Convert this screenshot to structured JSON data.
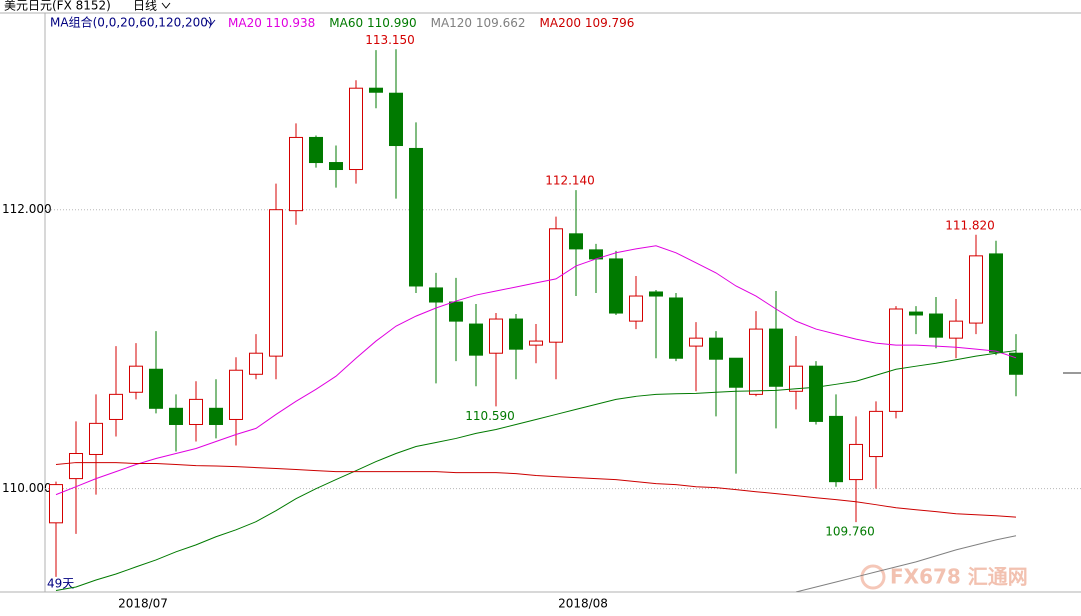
{
  "chart_data": {
    "type": "candlestick",
    "title": "美元日元(FX 8152)",
    "period": "日线",
    "ma_label": "MA组合(0,0,20,60,120,200)",
    "count_label": "49天",
    "watermark": "FX678 汇通网",
    "up_color": "#d40000",
    "down_color": "#007a00",
    "categories": [
      null,
      null,
      null,
      null,
      "2018/07",
      null,
      null,
      null,
      null,
      null,
      null,
      null,
      null,
      null,
      null,
      null,
      null,
      null,
      null,
      null,
      null,
      null,
      null,
      null,
      null,
      null,
      "2018/08",
      null,
      null,
      null,
      null,
      null,
      null,
      null,
      null,
      null,
      null,
      null,
      null,
      null,
      null,
      null,
      null,
      null,
      null,
      null,
      null,
      null,
      null
    ],
    "open": [
      109.755,
      110.072,
      110.245,
      110.496,
      110.691,
      110.856,
      110.576,
      110.46,
      110.576,
      110.496,
      110.82,
      110.95,
      111.993,
      112.518,
      112.338,
      112.288,
      112.871,
      112.835,
      112.439,
      111.439,
      111.338,
      111.18,
      110.971,
      111.216,
      111.029,
      111.05,
      111.827,
      111.712,
      111.647,
      111.201,
      111.41,
      111.367,
      111.022,
      111.079,
      110.935,
      110.676,
      111.144,
      110.698,
      110.878,
      110.518,
      110.065,
      110.23,
      110.554,
      111.266,
      111.252,
      111.079,
      111.187,
      111.683,
      110.971
    ],
    "high": [
      110.05,
      110.482,
      110.676,
      111.022,
      111.043,
      111.129,
      110.676,
      110.77,
      110.784,
      110.942,
      111.108,
      112.187,
      112.619,
      112.532,
      112.46,
      112.928,
      113.144,
      113.15,
      112.626,
      111.547,
      111.511,
      111.324,
      111.259,
      111.252,
      111.18,
      111.95,
      112.14,
      111.755,
      111.705,
      111.525,
      111.424,
      111.403,
      111.194,
      111.129,
      110.935,
      111.273,
      111.417,
      111.094,
      110.914,
      110.676,
      110.518,
      110.626,
      111.309,
      111.309,
      111.374,
      111.36,
      111.82,
      111.777,
      111.108
    ],
    "low": [
      109.367,
      109.676,
      109.957,
      110.374,
      110.64,
      110.54,
      110.266,
      110.338,
      110.36,
      110.309,
      110.784,
      110.784,
      111.892,
      112.302,
      112.158,
      112.187,
      112.727,
      112.079,
      111.403,
      110.755,
      110.914,
      110.734,
      110.59,
      110.784,
      110.899,
      110.784,
      111.381,
      111.403,
      111.245,
      111.144,
      110.935,
      110.914,
      110.698,
      110.518,
      110.108,
      110.662,
      110.432,
      110.568,
      110.46,
      110.014,
      109.76,
      110,
      110.504,
      111.108,
      111.007,
      110.935,
      111.108,
      110.957,
      110.662
    ],
    "close": [
      110.029,
      110.252,
      110.468,
      110.676,
      110.878,
      110.576,
      110.46,
      110.64,
      110.46,
      110.849,
      110.971,
      112,
      112.518,
      112.338,
      112.288,
      112.871,
      112.842,
      112.46,
      111.453,
      111.338,
      111.201,
      110.957,
      111.216,
      111,
      111.058,
      111.863,
      111.719,
      111.647,
      111.259,
      111.381,
      111.381,
      110.935,
      111.079,
      110.928,
      110.727,
      111.144,
      110.734,
      110.878,
      110.482,
      110.05,
      110.317,
      110.554,
      111.288,
      111.245,
      111.086,
      111.201,
      111.669,
      110.978,
      110.82
    ],
    "series": [
      {
        "name": "MA20",
        "legend_value": "110.938",
        "color": "#e000e0",
        "values": [
          109.957,
          110.014,
          110.072,
          110.122,
          110.173,
          110.216,
          110.252,
          110.288,
          110.338,
          110.388,
          110.432,
          110.532,
          110.626,
          110.712,
          110.806,
          110.935,
          111.058,
          111.165,
          111.237,
          111.295,
          111.345,
          111.388,
          111.417,
          111.446,
          111.475,
          111.504,
          111.597,
          111.647,
          111.691,
          111.719,
          111.741,
          111.691,
          111.619,
          111.547,
          111.453,
          111.381,
          111.288,
          111.201,
          111.144,
          111.108,
          111.072,
          111.043,
          111.029,
          111.029,
          111.022,
          111.014,
          111,
          110.986,
          110.938
        ]
      },
      {
        "name": "MA60",
        "legend_value": "110.990",
        "color": "#007a00",
        "values": [
          109.27,
          109.295,
          109.345,
          109.388,
          109.439,
          109.489,
          109.547,
          109.597,
          109.655,
          109.705,
          109.763,
          109.842,
          109.928,
          110,
          110.065,
          110.129,
          110.194,
          110.252,
          110.302,
          110.331,
          110.36,
          110.396,
          110.424,
          110.46,
          110.496,
          110.532,
          110.568,
          110.604,
          110.64,
          110.662,
          110.676,
          110.68,
          110.683,
          110.691,
          110.698,
          110.701,
          110.705,
          110.716,
          110.727,
          110.748,
          110.77,
          110.813,
          110.856,
          110.878,
          110.899,
          110.924,
          110.95,
          110.971,
          110.99
        ]
      },
      {
        "name": "MA120",
        "legend_value": "109.662",
        "color": "#808080",
        "values": [
          null,
          null,
          null,
          null,
          null,
          null,
          null,
          null,
          null,
          null,
          null,
          null,
          null,
          null,
          null,
          null,
          null,
          null,
          null,
          null,
          null,
          null,
          null,
          null,
          null,
          null,
          null,
          null,
          null,
          null,
          null,
          null,
          null,
          null,
          null,
          null,
          null,
          109.259,
          109.295,
          109.331,
          109.367,
          109.403,
          109.439,
          109.475,
          109.518,
          109.561,
          109.597,
          109.633,
          109.662
        ]
      },
      {
        "name": "MA200",
        "legend_value": "109.796",
        "color": "#cc0000",
        "values": [
          110.173,
          110.187,
          110.187,
          110.187,
          110.18,
          110.18,
          110.173,
          110.165,
          110.162,
          110.158,
          110.151,
          110.144,
          110.137,
          110.129,
          110.122,
          110.122,
          110.122,
          110.122,
          110.122,
          110.122,
          110.115,
          110.115,
          110.115,
          110.108,
          110.094,
          110.086,
          110.079,
          110.072,
          110.065,
          110.05,
          110.036,
          110.029,
          110.014,
          110.007,
          109.993,
          109.978,
          109.964,
          109.95,
          109.935,
          109.921,
          109.906,
          109.885,
          109.863,
          109.849,
          109.835,
          109.82,
          109.813,
          109.806,
          109.796
        ]
      }
    ],
    "high_labels": [
      {
        "value": 113.15,
        "label": "113.150"
      },
      {
        "value": 112.14,
        "label": "112.140"
      },
      {
        "value": 111.82,
        "label": "111.820"
      }
    ],
    "low_labels": [
      {
        "value": 110.59,
        "label": "110.590"
      },
      {
        "value": 109.76,
        "label": "109.760"
      }
    ],
    "ylim": [
      109.259,
      113.403
    ],
    "yticks": [
      {
        "value": 110,
        "label": "110.000"
      },
      {
        "value": 112,
        "label": "112.000"
      }
    ],
    "grid": true
  }
}
